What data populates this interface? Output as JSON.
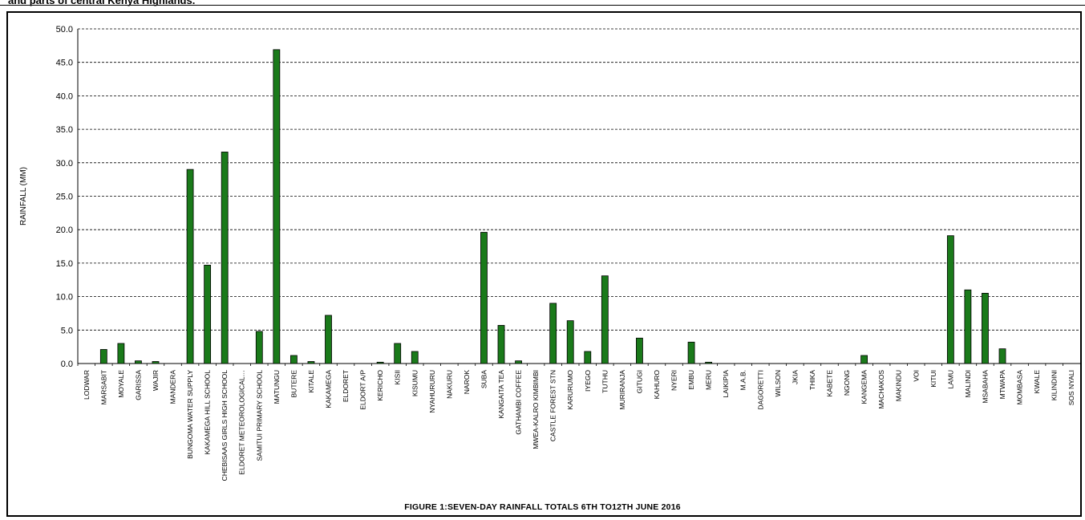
{
  "header": {
    "text": "and parts of central Kenya Highlands."
  },
  "figure_caption": "FIGURE 1:SEVEN-DAY RAINFALL TOTALS 6TH TO12TH JUNE 2016",
  "colors": {
    "bar": "#1a7a1a",
    "bar_edge": "#000000",
    "grid": "#000000",
    "axis": "#000000"
  },
  "chart_data": {
    "type": "bar",
    "title": "",
    "xlabel": "",
    "ylabel": "RAINFALL (MM)",
    "ylim": [
      0,
      50
    ],
    "yticks": [
      "0.0",
      "5.0",
      "10.0",
      "15.0",
      "20.0",
      "25.0",
      "30.0",
      "35.0",
      "40.0",
      "45.0",
      "50.0"
    ],
    "grid": "horizontal-dashed",
    "legend": "none",
    "categories": [
      "LODWAR",
      "MARSABIT",
      "MOYALE",
      "GARISSA",
      "WAJIR",
      "MANDERA",
      "BUNGOMA WATER SUPPLY",
      "KAKAMEGA HILL SCHOOL",
      "CHEBISAAS GIRLS HIGH SCHOOL",
      "ELDORET METEOROLOGICAL…",
      "SAMITUI PRIMARY SCHOOL",
      "MATUNGU",
      "BUTERE",
      "KITALE",
      "KAKAMEGA",
      "ELDORET",
      "ELDORT A/P",
      "KERICHO",
      "KISII",
      "KISUMU",
      "NYAHURURU",
      "NAKURU",
      "NAROK",
      "SUBA",
      "KANGAITA TEA",
      "GATHAMBI COFFEE",
      "MWEA-KALRO KIMBIMBI",
      "CASTLE FOREST STN",
      "KARURUMO",
      "IYEGO",
      "TUTHU",
      "MURIRANJA",
      "GITUGI",
      "KAHURO",
      "NYERI",
      "EMBU",
      "MERU",
      "LAIKIPIA",
      "M.A.B.",
      "DAGORETTI",
      "WILSON",
      "JKIA",
      "THIKA",
      "KABETE",
      "NGONG",
      "KANGEMA",
      "MACHAKOS",
      "MAKINDU",
      "VOI",
      "KITUI",
      "LAMU",
      "MALINDI",
      "MSABAHA",
      "MTWAPA",
      "MOMBASA",
      "KWALE",
      "KILINDINI",
      "SOS NYALI"
    ],
    "values": [
      0,
      2.1,
      3.0,
      0.4,
      0.3,
      0,
      29.0,
      14.7,
      31.6,
      0,
      4.8,
      46.9,
      1.2,
      0.3,
      7.2,
      0,
      0,
      0.2,
      3.0,
      1.8,
      0,
      0,
      0,
      19.6,
      5.7,
      0.4,
      0,
      9.0,
      6.4,
      1.8,
      13.1,
      0,
      3.8,
      0,
      0,
      3.2,
      0.2,
      0,
      0,
      0,
      0,
      0,
      0,
      0,
      0,
      1.2,
      0,
      0,
      0,
      0,
      19.1,
      11.0,
      10.5,
      2.2,
      0,
      0,
      0,
      0
    ]
  }
}
